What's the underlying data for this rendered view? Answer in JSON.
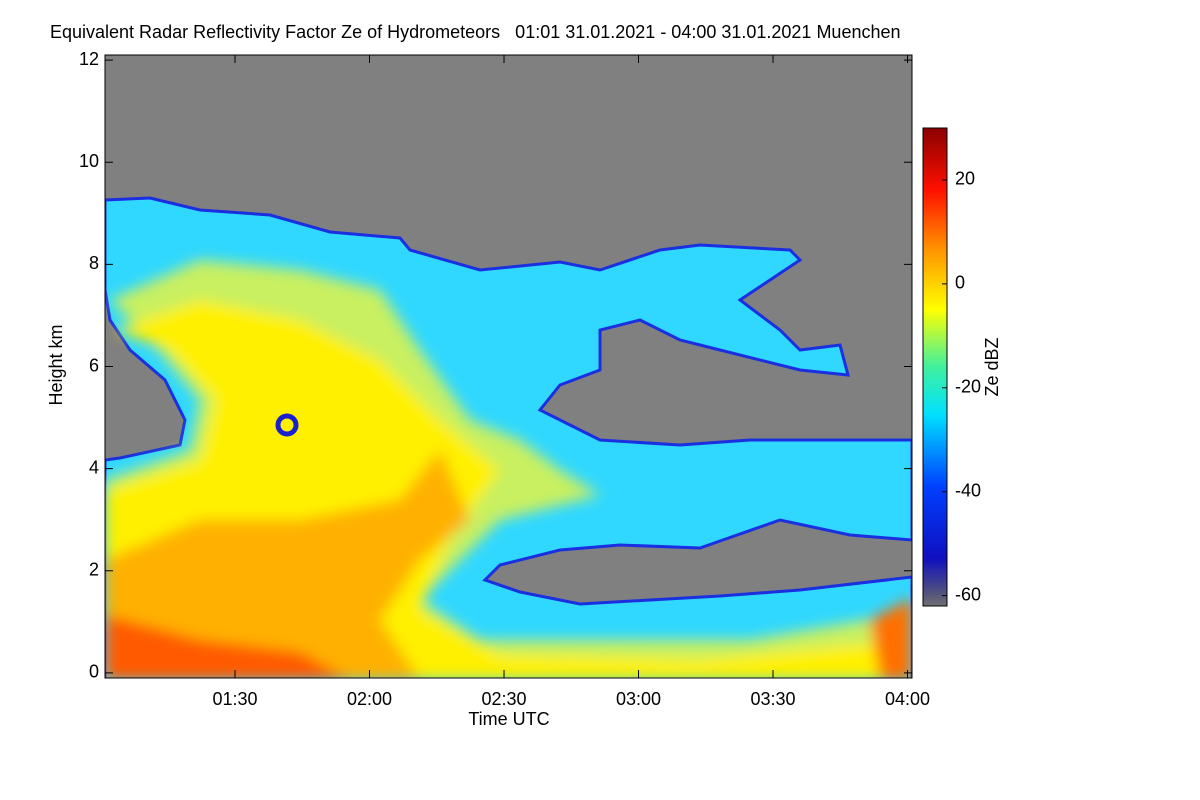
{
  "chart_data": {
    "type": "heatmap",
    "title": "Equivalent Radar Reflectivity Factor Ze of Hydrometeors   01:01 31.01.2021 - 04:00 31.01.2021 Muenchen",
    "xlabel": "Time UTC",
    "ylabel": "Height km",
    "colorbar_label": "Ze dBZ",
    "xlim": [
      61,
      241
    ],
    "xticks": [
      {
        "value": 90,
        "label": "01:30"
      },
      {
        "value": 120,
        "label": "02:00"
      },
      {
        "value": 150,
        "label": "02:30"
      },
      {
        "value": 180,
        "label": "03:00"
      },
      {
        "value": 210,
        "label": "03:30"
      },
      {
        "value": 240,
        "label": "04:00"
      }
    ],
    "ylim": [
      -0.1,
      12.1
    ],
    "yticks": [
      0,
      2,
      4,
      6,
      8,
      10,
      12
    ],
    "clim": [
      -62,
      30
    ],
    "cticks": [
      -60,
      -40,
      -20,
      0,
      20
    ]
  }
}
